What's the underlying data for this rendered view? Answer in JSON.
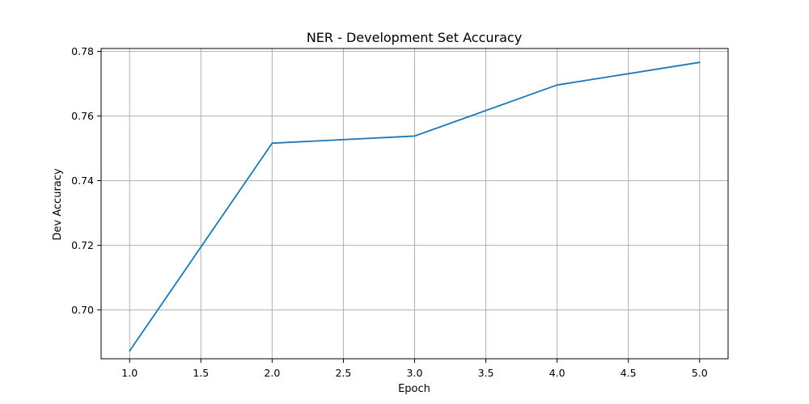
{
  "chart_data": {
    "type": "line",
    "title": "NER - Development Set Accuracy",
    "xlabel": "Epoch",
    "ylabel": "Dev Accuracy",
    "xlim": [
      0.8,
      5.2
    ],
    "ylim": [
      0.6849,
      0.7809
    ],
    "xticks": [
      1.0,
      1.5,
      2.0,
      2.5,
      3.0,
      3.5,
      4.0,
      4.5,
      5.0
    ],
    "xtick_labels": [
      "1.0",
      "1.5",
      "2.0",
      "2.5",
      "3.0",
      "3.5",
      "4.0",
      "4.5",
      "5.0"
    ],
    "yticks": [
      0.7,
      0.72,
      0.74,
      0.76,
      0.78
    ],
    "ytick_labels": [
      "0.70",
      "0.72",
      "0.74",
      "0.76",
      "0.78"
    ],
    "grid": true,
    "series": [
      {
        "x": [
          1,
          2,
          3,
          4,
          5
        ],
        "values": [
          0.6873,
          0.7516,
          0.7538,
          0.7696,
          0.7766
        ],
        "color": "#1f77b4"
      }
    ]
  }
}
